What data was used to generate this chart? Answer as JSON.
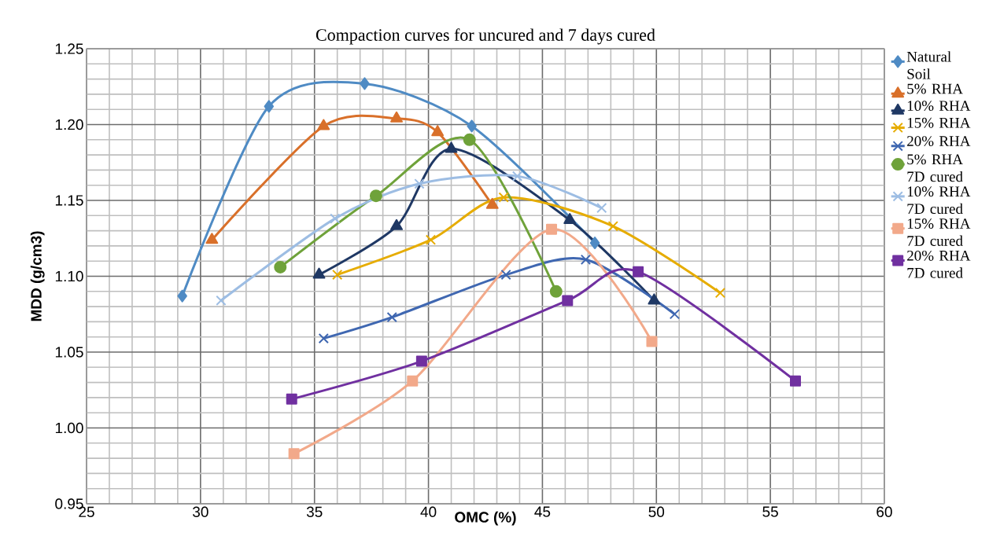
{
  "chart_data": {
    "type": "line",
    "title": "Compaction curves for uncured and 7 days cured",
    "xlabel": "OMC (%)",
    "ylabel": "MDD (g/cm3)",
    "xlim": [
      25,
      60
    ],
    "xticks": [
      25,
      30,
      35,
      40,
      45,
      50,
      55,
      60
    ],
    "ylim": [
      0.95,
      1.25
    ],
    "yticks": [
      {
        "value": 0.95,
        "label": "0.95"
      },
      {
        "value": 1.0,
        "label": "1.00"
      },
      {
        "value": 1.05,
        "label": "1.05"
      },
      {
        "value": 1.1,
        "label": "1.10"
      },
      {
        "value": 1.15,
        "label": "1.15"
      },
      {
        "value": 1.2,
        "label": "1.20"
      },
      {
        "value": 1.25,
        "label": "1.25"
      }
    ],
    "grid": true,
    "legend": "right",
    "series": [
      {
        "name": "Natural Soil",
        "color": "#4f8bc4",
        "marker": "diamond",
        "x": [
          29.2,
          33.0,
          37.2,
          41.9,
          47.3
        ],
        "values": [
          1.087,
          1.212,
          1.227,
          1.199,
          1.122
        ]
      },
      {
        "name": "5% RHA",
        "color": "#d9702a",
        "marker": "triangle",
        "x": [
          30.5,
          35.4,
          38.6,
          40.4,
          42.8
        ],
        "values": [
          1.124,
          1.199,
          1.204,
          1.195,
          1.147
        ]
      },
      {
        "name": "10% RHA",
        "color": "#1f3864",
        "marker": "triangle",
        "x": [
          35.2,
          38.6,
          41.0,
          46.2,
          49.9
        ],
        "values": [
          1.101,
          1.133,
          1.184,
          1.137,
          1.084
        ]
      },
      {
        "name": "15% RHA",
        "color": "#e6ac00",
        "marker": "cross",
        "x": [
          36.0,
          40.1,
          43.3,
          48.1,
          52.8
        ],
        "values": [
          1.101,
          1.124,
          1.152,
          1.133,
          1.089
        ]
      },
      {
        "name": "20% RHA",
        "color": "#3f67b1",
        "marker": "cross",
        "x": [
          35.4,
          38.4,
          43.4,
          46.9,
          50.8
        ],
        "values": [
          1.059,
          1.073,
          1.101,
          1.111,
          1.075
        ]
      },
      {
        "name": "5% RHA 7D cured",
        "color": "#6fa23a",
        "marker": "circle",
        "x": [
          33.5,
          37.7,
          41.8,
          45.6
        ],
        "values": [
          1.106,
          1.153,
          1.19,
          1.09
        ]
      },
      {
        "name": "10% RHA 7D cured",
        "color": "#9dbde3",
        "marker": "cross",
        "x": [
          30.9,
          35.9,
          39.6,
          43.9,
          47.6
        ],
        "values": [
          1.084,
          1.138,
          1.161,
          1.166,
          1.145
        ]
      },
      {
        "name": "15% RHA 7D cured",
        "color": "#f2a98a",
        "marker": "square",
        "x": [
          34.1,
          39.3,
          45.4,
          49.8
        ],
        "values": [
          0.983,
          1.031,
          1.131,
          1.057
        ]
      },
      {
        "name": "20% RHA 7D cured",
        "color": "#7030a0",
        "marker": "square",
        "x": [
          34.0,
          39.7,
          46.1,
          49.2,
          56.1
        ],
        "values": [
          1.019,
          1.044,
          1.084,
          1.103,
          1.031
        ]
      }
    ]
  }
}
